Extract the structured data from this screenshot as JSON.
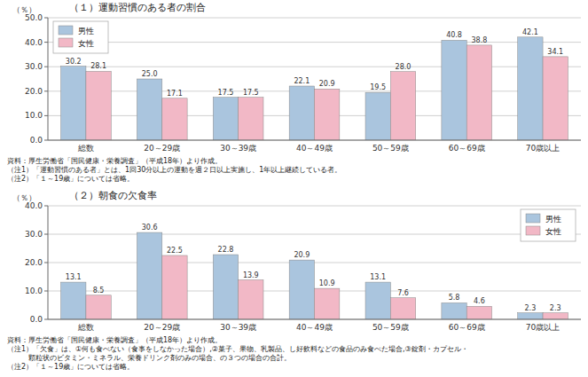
{
  "chart_data": [
    {
      "type": "bar",
      "title": "（１）運動習慣のある者の割合",
      "ylabel": "（％）",
      "categories": [
        "総数",
        "20～29歳",
        "30～39歳",
        "40～49歳",
        "50～59歳",
        "60～69歳",
        "70歳以上"
      ],
      "series": [
        {
          "name": "男性",
          "color": "#aac5de",
          "values": [
            30.2,
            25.0,
            17.5,
            22.1,
            19.5,
            40.8,
            42.1
          ],
          "value_labels": [
            "30.2",
            "25.0",
            "17.5",
            "22.1",
            "19.5",
            "40.8",
            "42.1"
          ]
        },
        {
          "name": "女性",
          "color": "#f2b8c6",
          "values": [
            28.1,
            17.1,
            17.5,
            20.9,
            28.0,
            38.8,
            34.1
          ],
          "value_labels": [
            "28.1",
            "17.1",
            "17.5",
            "20.9",
            "28.0",
            "38.8",
            "34.1"
          ]
        }
      ],
      "ylim": [
        0,
        50
      ],
      "yticks": [
        {
          "value": 0,
          "label": "0.0"
        },
        {
          "value": 10,
          "label": "10.0"
        },
        {
          "value": 20,
          "label": "20.0"
        },
        {
          "value": 30,
          "label": "30.0"
        },
        {
          "value": 40,
          "label": "40.0"
        },
        {
          "value": 50,
          "label": "50.0"
        }
      ],
      "grid": true,
      "legend": "upper left",
      "data_labels": true,
      "annotations": [
        "資料：厚生労働省「国民健康・栄養調査」（平成18年）より作成。",
        "（注1）「運動習慣のある者」とは、1回30分以上の運動を週２日以上実施し、1年以上継続している者。",
        "（注2）「１～19歳」については省略。"
      ]
    },
    {
      "type": "bar",
      "title": "（２）朝食の欠食率",
      "ylabel": "（％）",
      "categories": [
        "総数",
        "20～29歳",
        "30～39歳",
        "40～49歳",
        "50～59歳",
        "60～69歳",
        "70歳以上"
      ],
      "series": [
        {
          "name": "男性",
          "color": "#aac5de",
          "values": [
            13.1,
            30.6,
            22.8,
            20.9,
            13.1,
            5.8,
            2.3
          ],
          "value_labels": [
            "13.1",
            "30.6",
            "22.8",
            "20.9",
            "13.1",
            "5.8",
            "2.3"
          ]
        },
        {
          "name": "女性",
          "color": "#f2b8c6",
          "values": [
            8.5,
            22.5,
            13.9,
            10.9,
            7.6,
            4.6,
            2.3
          ],
          "value_labels": [
            "8.5",
            "22.5",
            "13.9",
            "10.9",
            "7.6",
            "4.6",
            "2.3"
          ]
        }
      ],
      "ylim": [
        0,
        40
      ],
      "yticks": [
        {
          "value": 0,
          "label": "0.0"
        },
        {
          "value": 10,
          "label": "10.0"
        },
        {
          "value": 20,
          "label": "20.0"
        },
        {
          "value": 30,
          "label": "30.0"
        },
        {
          "value": 40,
          "label": "40.0"
        }
      ],
      "grid": true,
      "legend": "upper right",
      "data_labels": true,
      "annotations": [
        "資料：厚生労働省「国民健康・栄養調査」（平成18年）より作成。",
        "（注1）「欠食」は、①何も食べない（食事をしなかった場合）,②菓子、果物、乳製品、し好飲料などの食品のみ食べた場合,③錠剤・カプセル・",
        "　　　顆粒状のビタミン・ミネラル、栄養ドリンク剤のみの場合、の３つの場合の合計。",
        "（注2）「１～19歳」については省略。"
      ]
    }
  ]
}
